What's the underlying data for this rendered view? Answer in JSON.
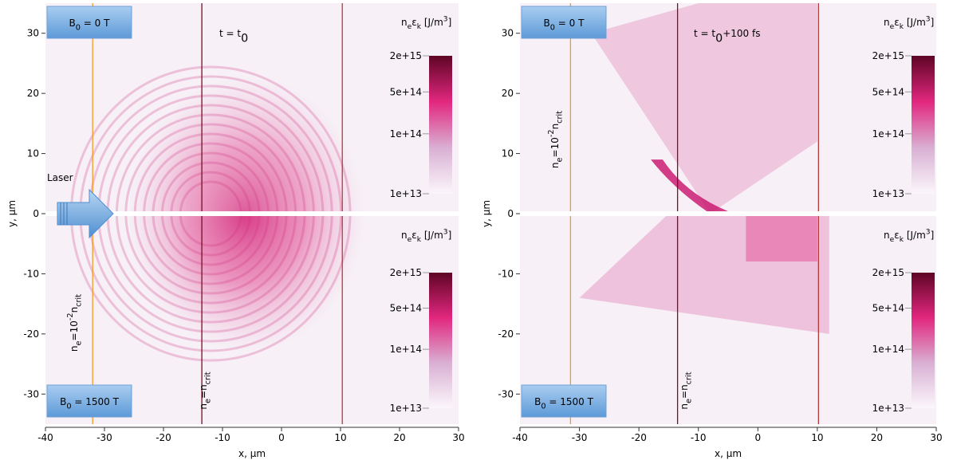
{
  "chart_data": [
    {
      "type": "heatmap",
      "time": [
        {
          "text": "t = t"
        },
        {
          "sub": "0"
        }
      ],
      "annotation": "Laser",
      "xlabel": "x, µm",
      "ylabel": "y, µm",
      "xlim": [
        -40,
        30
      ],
      "ylim": [
        -35,
        35
      ],
      "xticks": [
        -40,
        -30,
        -20,
        -10,
        0,
        10,
        20,
        30
      ],
      "yticks": [
        -30,
        -20,
        -10,
        0,
        10,
        20,
        30
      ],
      "halves": [
        {
          "field": [
            {
              "text": "B"
            },
            {
              "sub": "0"
            },
            {
              "text": " = 0 T"
            }
          ],
          "colorbar_title": [
            {
              "text": "n"
            },
            {
              "sub": "e"
            },
            {
              "text": "ε"
            },
            {
              "sub": "k"
            },
            {
              "text": " [J/m"
            },
            {
              "sup": "3"
            },
            {
              "text": "]"
            }
          ]
        },
        {
          "field": [
            {
              "text": "B"
            },
            {
              "sub": "0"
            },
            {
              "text": " = 1500 T"
            }
          ],
          "colorbar_title": [
            {
              "text": "n"
            },
            {
              "sub": "e"
            },
            {
              "text": "ε"
            },
            {
              "sub": "k"
            },
            {
              "text": " [J/m"
            },
            {
              "sup": "3"
            },
            {
              "text": "]"
            }
          ]
        }
      ],
      "colorbar": {
        "scale": "log",
        "lim": [
          10000000000000,
          2000000000000000
        ],
        "ticks": [
          {
            "value": 10000000000000,
            "label": "1e+13"
          },
          {
            "value": 100000000000000,
            "label": "1e+14"
          },
          {
            "value": 500000000000000,
            "label": "5e+14"
          },
          {
            "value": 2000000000000000,
            "label": "2e+15"
          }
        ],
        "colors": [
          "#fbf6fb",
          "#d9b0d3",
          "#e2277f",
          "#5e0524"
        ]
      },
      "contours": [
        {
          "x": -13.5,
          "color": "#7a0f1f"
        },
        {
          "x": 10.3,
          "color": "#b33a3a"
        },
        {
          "x": -32,
          "color": "#f29a1f"
        }
      ],
      "contour_labels": [
        [
          {
            "text": "n"
          },
          {
            "sub": "e"
          },
          {
            "text": "=10"
          },
          {
            "sup": "-2"
          },
          {
            "text": "n"
          },
          {
            "sub": "crit"
          }
        ],
        [
          {
            "text": "n"
          },
          {
            "sub": "e"
          },
          {
            "text": "=n"
          },
          {
            "sub": "crit"
          }
        ]
      ]
    },
    {
      "type": "heatmap",
      "time": [
        {
          "text": "t = t"
        },
        {
          "sub": "0"
        },
        {
          "text": "+100 fs"
        }
      ],
      "xlabel": "x, µm",
      "ylabel": "y, µm",
      "xlim": [
        -40,
        30
      ],
      "ylim": [
        -35,
        35
      ],
      "xticks": [
        -40,
        -30,
        -20,
        -10,
        0,
        10,
        20,
        30
      ],
      "yticks": [
        -30,
        -20,
        -10,
        0,
        10,
        20,
        30
      ],
      "halves": [
        {
          "field": [
            {
              "text": "B"
            },
            {
              "sub": "0"
            },
            {
              "text": " = 0 T"
            }
          ],
          "colorbar_title": [
            {
              "text": "n"
            },
            {
              "sub": "e"
            },
            {
              "text": "ε"
            },
            {
              "sub": "k"
            },
            {
              "text": " [J/m"
            },
            {
              "sup": "3"
            },
            {
              "text": "]"
            }
          ]
        },
        {
          "field": [
            {
              "text": "B"
            },
            {
              "sub": "0"
            },
            {
              "text": " = 1500 T"
            }
          ],
          "colorbar_title": [
            {
              "text": "n"
            },
            {
              "sub": "e"
            },
            {
              "text": "ε"
            },
            {
              "sub": "k"
            },
            {
              "text": " [J/m"
            },
            {
              "sup": "3"
            },
            {
              "text": "]"
            }
          ]
        }
      ],
      "colorbar": {
        "scale": "log",
        "lim": [
          10000000000000,
          2000000000000000
        ],
        "ticks": [
          {
            "value": 10000000000000,
            "label": "1e+13"
          },
          {
            "value": 100000000000000,
            "label": "1e+14"
          },
          {
            "value": 500000000000000,
            "label": "5e+14"
          },
          {
            "value": 2000000000000000,
            "label": "2e+15"
          }
        ],
        "colors": [
          "#fbf6fb",
          "#d9b0d3",
          "#e2277f",
          "#5e0524"
        ]
      },
      "contours": [
        {
          "x": -13.5,
          "color": "#7a0f1f"
        },
        {
          "x": 10.2,
          "color": "#b33a3a"
        },
        {
          "x": -31.5,
          "color": "#f29a1f"
        }
      ],
      "contour_labels": [
        [
          {
            "text": "n"
          },
          {
            "sub": "e"
          },
          {
            "text": "=10"
          },
          {
            "sup": "-2"
          },
          {
            "text": "n"
          },
          {
            "sub": "crit"
          }
        ],
        [
          {
            "text": "n"
          },
          {
            "sub": "e"
          },
          {
            "text": "=n"
          },
          {
            "sub": "crit"
          }
        ]
      ]
    }
  ]
}
